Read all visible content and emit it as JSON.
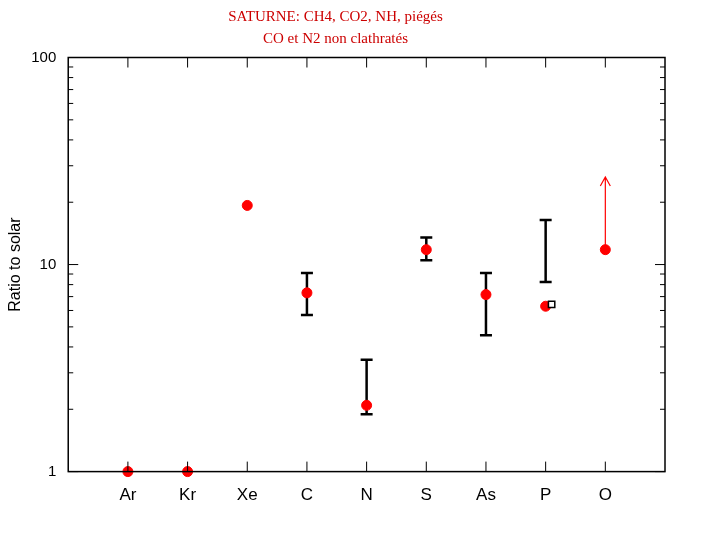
{
  "chart_data": {
    "type": "scatter",
    "title": [
      "SATURNE: CH4, CO2, NH, piégés",
      "CO et N2 non clathratés"
    ],
    "y_label": "Ratio to solar",
    "categories": [
      "Ar",
      "Kr",
      "Xe",
      "C",
      "N",
      "S",
      "As",
      "P",
      "O"
    ],
    "log": "y",
    "ylim": [
      1,
      100
    ],
    "yticks": [
      1,
      10,
      100
    ],
    "grid": false,
    "series": [
      {
        "values": [
          1,
          1,
          19.3,
          7.3,
          2.09,
          11.8,
          7.16,
          6.29,
          11.8
        ],
        "color": "#ff0000",
        "marker": "circle"
      },
      {
        "values": [
          null,
          null,
          null,
          null,
          null,
          null,
          null,
          6.42,
          null
        ],
        "color": "#000000",
        "marker": "square"
      }
    ],
    "error_bars": {
      "low": [
        null,
        null,
        null,
        5.7,
        1.89,
        10.5,
        4.55,
        8.24,
        null
      ],
      "high": [
        null,
        null,
        null,
        9.1,
        3.47,
        13.5,
        9.1,
        16.4,
        null
      ],
      "color": "#000000"
    },
    "lower_limits": {
      "values": [
        null,
        null,
        null,
        null,
        null,
        null,
        null,
        null,
        26.5
      ],
      "color": "#ff0000"
    }
  }
}
